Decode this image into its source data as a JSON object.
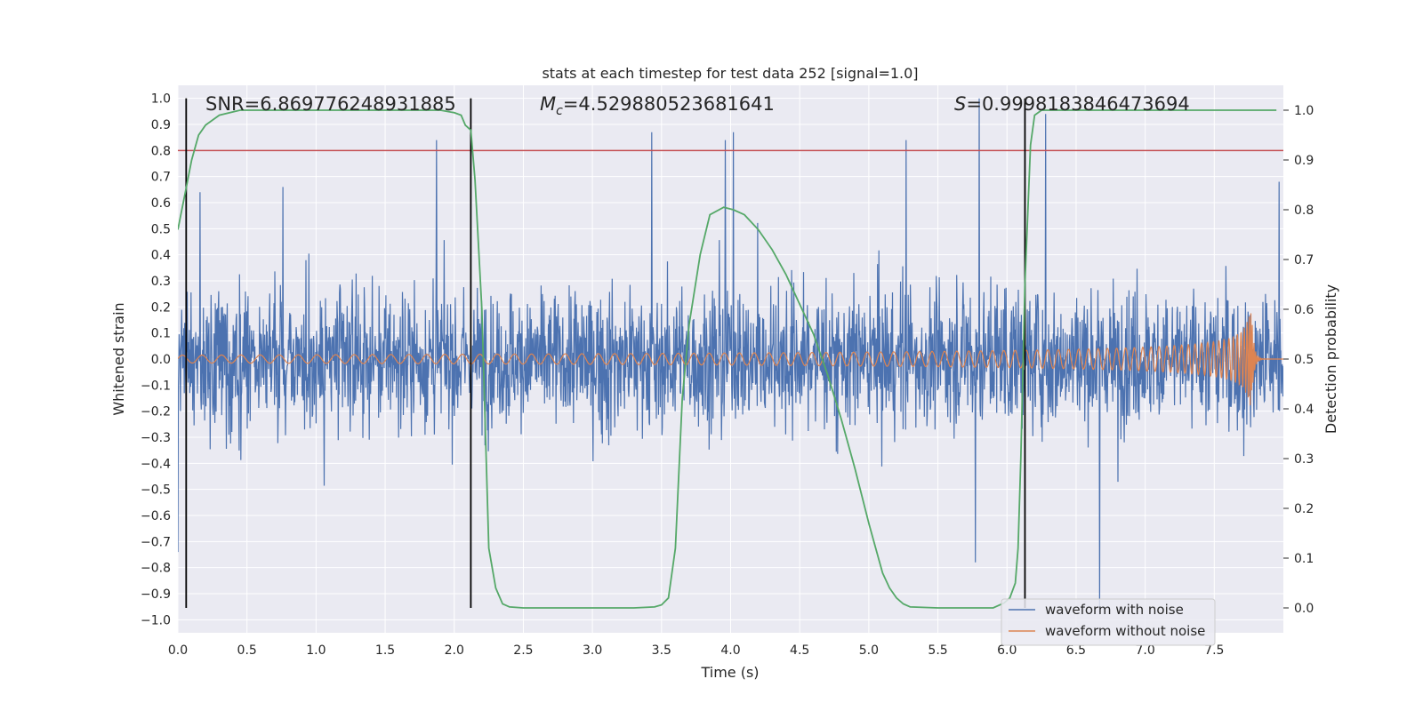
{
  "chart_data": {
    "type": "line",
    "title": "stats at each timestep for test data 252 [signal=1.0]",
    "xlabel": "Time (s)",
    "ylabel": "Whitened strain",
    "ylabel_right": "Detection probability",
    "xlim": [
      0.0,
      8.0
    ],
    "ylim": [
      -1.05,
      1.05
    ],
    "ylim_right": [
      -0.05,
      1.05
    ],
    "x_ticks": [
      "0.0",
      "0.5",
      "1.0",
      "1.5",
      "2.0",
      "2.5",
      "3.0",
      "3.5",
      "4.0",
      "4.5",
      "5.0",
      "5.5",
      "6.0",
      "6.5",
      "7.0",
      "7.5"
    ],
    "y_ticks": [
      "1.0",
      "0.9",
      "0.8",
      "0.7",
      "0.6",
      "0.5",
      "0.4",
      "0.3",
      "0.2",
      "0.1",
      "0.0",
      "−0.1",
      "−0.2",
      "−0.3",
      "−0.4",
      "−0.5",
      "−0.6",
      "−0.7",
      "−0.8",
      "−0.9",
      "−1.0"
    ],
    "y_ticks_right": [
      "1.0",
      "0.9",
      "0.8",
      "0.7",
      "0.6",
      "0.5",
      "0.4",
      "0.3",
      "0.2",
      "0.1",
      "0.0"
    ],
    "annotations": {
      "snr": "SNR=6.869776248931885",
      "mc_symbol": "M",
      "mc_sub": "c",
      "mc_value": "=4.529880523681641",
      "s_symbol": "S",
      "s_value": "=0.9998183846473694"
    },
    "threshold": {
      "value": 0.8,
      "axis": "left",
      "color": "#c44e52"
    },
    "vertical_markers": [
      0.06,
      2.12,
      6.13
    ],
    "series": [
      {
        "name": "waveform with noise",
        "color": "#4c72b0",
        "kind": "noise",
        "typical_amplitude": 0.4,
        "peak_values": [
          {
            "x": 0.0,
            "y": -0.74
          },
          {
            "x": 0.16,
            "y": 0.64
          },
          {
            "x": 0.76,
            "y": 0.66
          },
          {
            "x": 1.87,
            "y": 0.84
          },
          {
            "x": 3.43,
            "y": 0.87
          },
          {
            "x": 3.96,
            "y": 0.84
          },
          {
            "x": 4.02,
            "y": 0.87
          },
          {
            "x": 5.27,
            "y": 0.84
          },
          {
            "x": 5.8,
            "y": 1.0
          },
          {
            "x": 5.77,
            "y": -0.78
          },
          {
            "x": 6.28,
            "y": 0.94
          },
          {
            "x": 6.67,
            "y": -0.98
          },
          {
            "x": 7.97,
            "y": 0.68
          }
        ]
      },
      {
        "name": "waveform without noise",
        "color": "#dd8452",
        "kind": "chirp",
        "start_amplitude": 0.015,
        "peak_time": 7.77,
        "peak_amplitude": 0.18
      },
      {
        "name": "detection probability",
        "color": "#55a868",
        "axis": "right",
        "x": [
          0.0,
          0.05,
          0.1,
          0.12,
          0.15,
          0.2,
          0.3,
          0.45,
          1.0,
          1.5,
          1.9,
          2.0,
          2.05,
          2.08,
          2.12,
          2.15,
          2.2,
          2.25,
          2.3,
          2.35,
          2.4,
          2.5,
          3.0,
          3.3,
          3.45,
          3.5,
          3.55,
          3.6,
          3.65,
          3.7,
          3.78,
          3.85,
          3.95,
          4.02,
          4.1,
          4.2,
          4.3,
          4.4,
          4.5,
          4.6,
          4.7,
          4.8,
          4.9,
          5.0,
          5.05,
          5.1,
          5.15,
          5.2,
          5.25,
          5.3,
          5.5,
          5.9,
          5.98,
          6.02,
          6.06,
          6.08,
          6.1,
          6.13,
          6.17,
          6.2,
          6.25,
          6.3,
          6.5,
          7.0,
          7.5,
          7.95
        ],
        "y": [
          0.76,
          0.83,
          0.9,
          0.92,
          0.95,
          0.97,
          0.99,
          1.0,
          1.0,
          1.0,
          1.0,
          0.995,
          0.99,
          0.97,
          0.96,
          0.86,
          0.6,
          0.12,
          0.04,
          0.008,
          0.002,
          0.0,
          0.0,
          0.0,
          0.002,
          0.006,
          0.02,
          0.12,
          0.42,
          0.57,
          0.71,
          0.79,
          0.805,
          0.8,
          0.79,
          0.76,
          0.72,
          0.67,
          0.61,
          0.55,
          0.47,
          0.38,
          0.28,
          0.17,
          0.12,
          0.07,
          0.04,
          0.02,
          0.008,
          0.002,
          0.0,
          0.0,
          0.01,
          0.02,
          0.05,
          0.12,
          0.3,
          0.65,
          0.93,
          0.99,
          1.0,
          1.0,
          1.0,
          1.0,
          1.0,
          1.0
        ]
      }
    ],
    "legend": {
      "position": "lower-right",
      "entries": [
        {
          "label": "waveform with noise",
          "color": "#4c72b0"
        },
        {
          "label": "waveform without noise",
          "color": "#dd8452"
        }
      ]
    }
  }
}
